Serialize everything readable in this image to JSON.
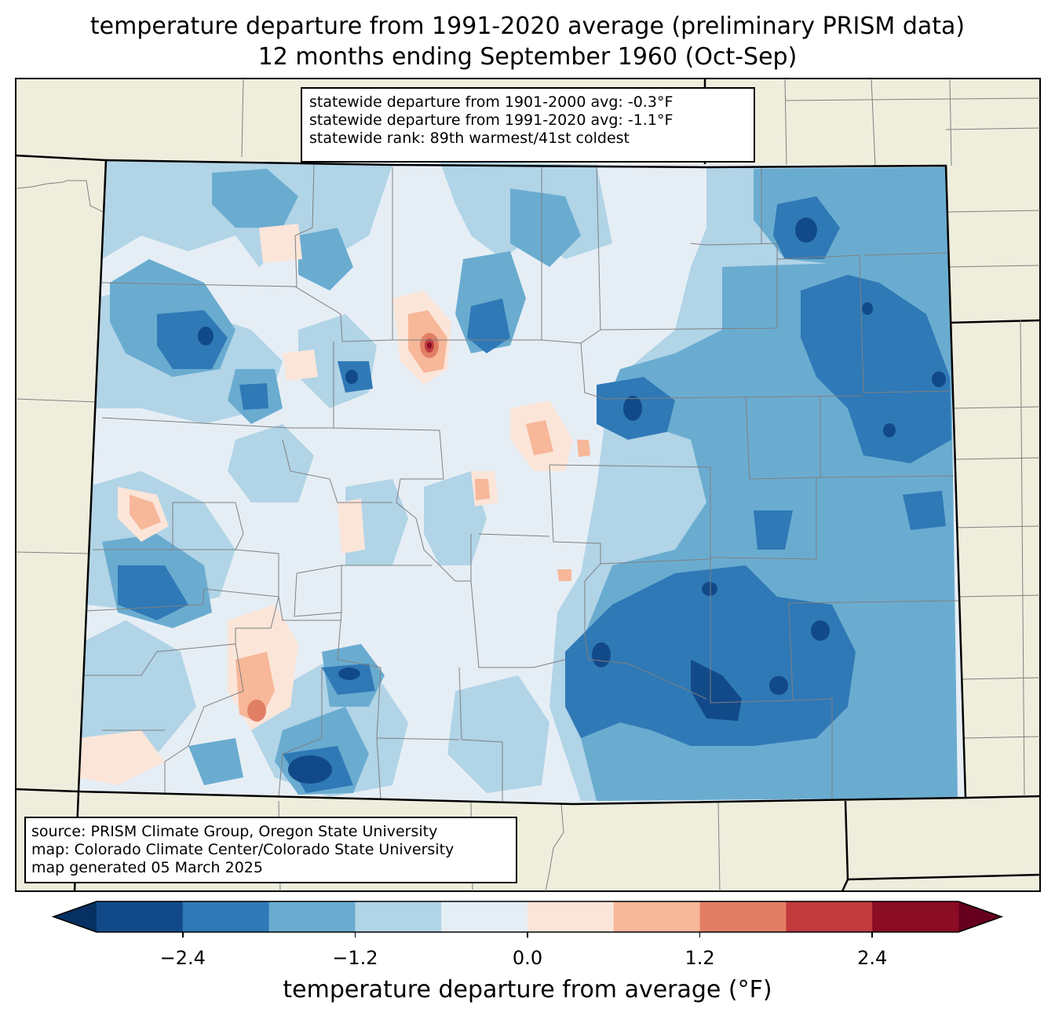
{
  "title": {
    "line1": "temperature departure from 1991-2020 average (preliminary PRISM data)",
    "line2": "12 months ending September 1960 (Oct-Sep)"
  },
  "stats_box": {
    "line1": "statewide departure from 1901-2000 avg: -0.3°F",
    "line2": "statewide departure from 1991-2020 avg: -1.1°F",
    "line3": "statewide rank: 89th warmest/41st coldest"
  },
  "source_box": {
    "line1": "source: PRISM Climate Group, Oregon State University",
    "line2": "map: Colorado Climate Center/Colorado State University",
    "line3": "map generated 05 March 2025"
  },
  "colorbar": {
    "label": "temperature departure from average (°F)",
    "ticks": [
      "−2.4",
      "−1.2",
      "0.0",
      "1.2",
      "2.4"
    ],
    "tick_values": [
      -2.4,
      -1.2,
      0.0,
      1.2,
      2.4
    ],
    "bounds": [
      -3.0,
      -2.4,
      -1.8,
      -1.2,
      -0.6,
      0.0,
      0.6,
      1.2,
      1.8,
      2.4,
      3.0
    ],
    "colors": [
      "#124a89",
      "#2f79b7",
      "#6aacd0",
      "#b1d4e7",
      "#e6eef5",
      "#fbe5d9",
      "#f7b799",
      "#e17f65",
      "#c13a3e",
      "#8a0c25"
    ],
    "under_color": "#053061",
    "over_color": "#67001f"
  },
  "map_colors": {
    "background_land": "#efeedd",
    "state_border": "#000000",
    "county_border": "#808080"
  }
}
